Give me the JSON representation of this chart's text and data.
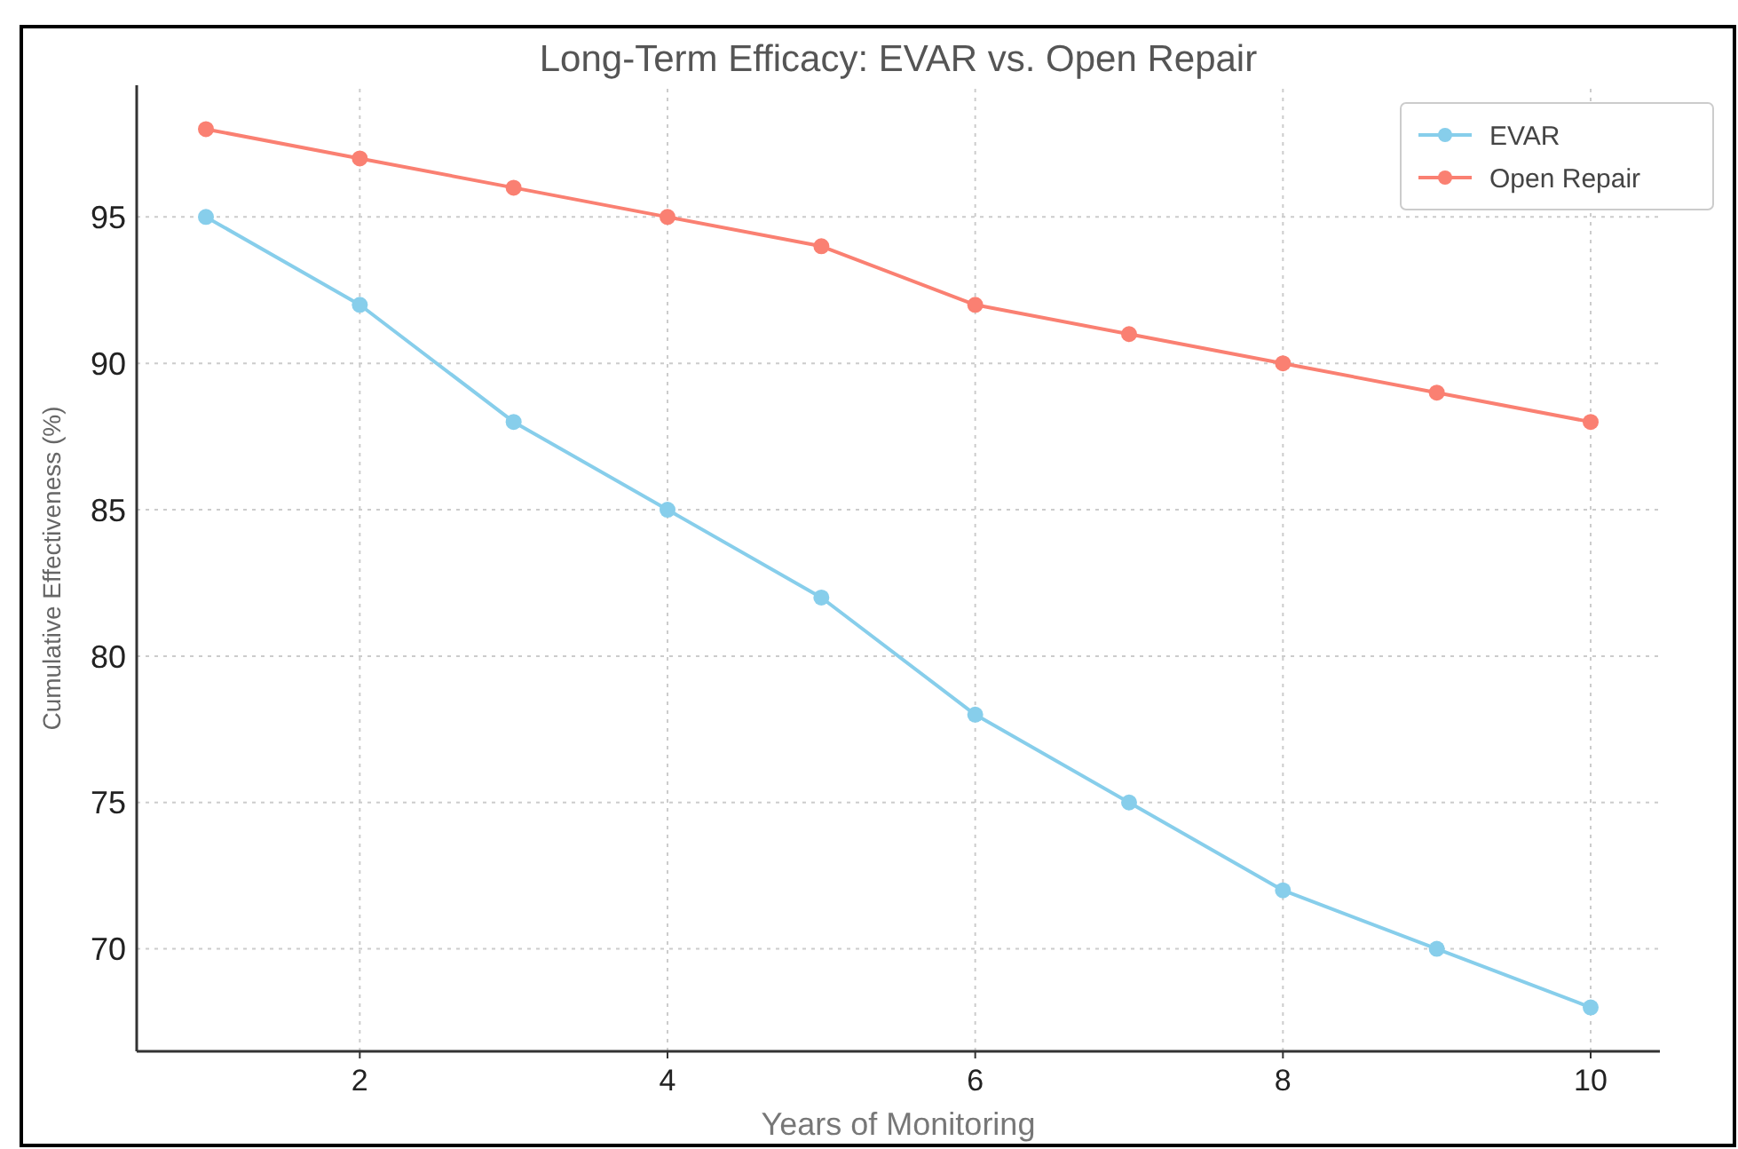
{
  "chart_data": {
    "type": "line",
    "title": "Long-Term Efficacy: EVAR vs. Open Repair",
    "xlabel": "Years of Monitoring",
    "ylabel": "Cumulative Effectiveness (%)",
    "x": [
      1,
      2,
      3,
      4,
      5,
      6,
      7,
      8,
      9,
      10
    ],
    "series": [
      {
        "name": "EVAR",
        "color": "#87ceeb",
        "values": [
          95,
          92,
          88,
          85,
          82,
          78,
          75,
          72,
          70,
          68
        ]
      },
      {
        "name": "Open Repair",
        "color": "#fa8072",
        "values": [
          98,
          97,
          96,
          95,
          94,
          92,
          91,
          90,
          89,
          88
        ]
      }
    ],
    "xlim": [
      0.55,
      10.45
    ],
    "xticks": [
      2,
      4,
      6,
      8,
      10
    ],
    "ylim": [
      66.5,
      99.5
    ],
    "yticks": [
      70,
      75,
      80,
      85,
      90,
      95
    ],
    "grid": true,
    "legend": "top right",
    "marker": "circle",
    "line_style": "solid"
  }
}
